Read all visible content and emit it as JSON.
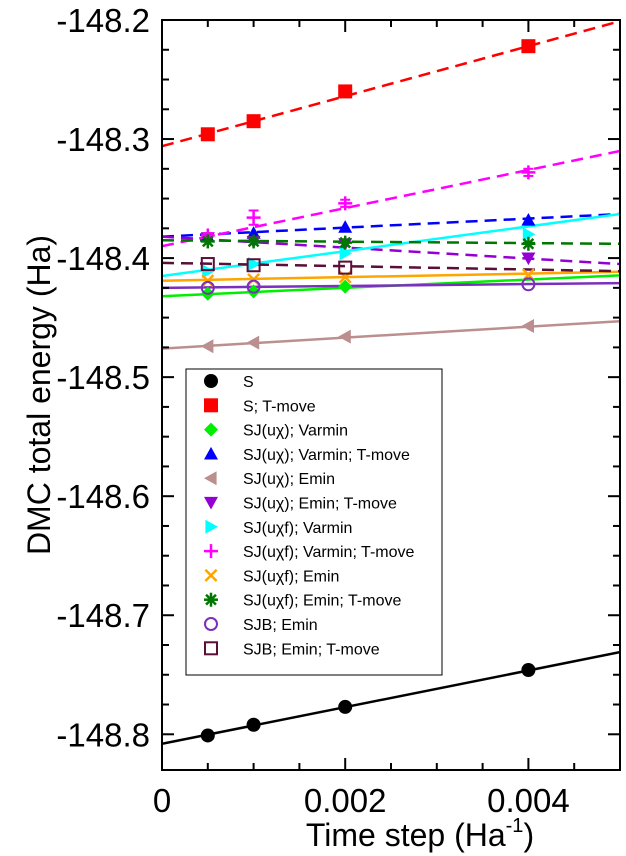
{
  "chart_data": {
    "type": "scatter",
    "xlabel": "Time step (Ha",
    "xlabel_sup": "-1",
    "xlabel_end": ")",
    "ylabel": "DMC total energy (Ha)",
    "xlim": [
      0,
      0.005
    ],
    "ylim": [
      -148.83,
      -148.2
    ],
    "x_ticks": [
      0,
      0.002,
      0.004
    ],
    "x_tick_labels": [
      "0",
      "0.002",
      "0.004"
    ],
    "y_ticks": [
      -148.2,
      -148.3,
      -148.4,
      -148.5,
      -148.6,
      -148.7,
      -148.8
    ],
    "y_tick_labels": [
      "-148.2",
      "-148.3",
      "-148.4",
      "-148.5",
      "-148.6",
      "-148.7",
      "-148.8"
    ],
    "grid": false,
    "legend_position": "lower-left",
    "series": [
      {
        "name": "S",
        "marker": "circle",
        "color": "#000000",
        "line": "solid",
        "x": [
          0.0005,
          0.001,
          0.002,
          0.004
        ],
        "y": [
          -148.801,
          -148.792,
          -148.777,
          -148.746
        ],
        "fit": {
          "intercept": -148.808,
          "slope": 15.4
        }
      },
      {
        "name": "S; T-move",
        "marker": "square",
        "color": "#ff0000",
        "line": "dashed",
        "x": [
          0.0005,
          0.001,
          0.002,
          0.004
        ],
        "y": [
          -148.296,
          -148.285,
          -148.26,
          -148.222
        ],
        "fit": {
          "intercept": -148.306,
          "slope": 21.0
        }
      },
      {
        "name": "SJ(uχ); Varmin",
        "marker": "diamond",
        "color": "#00ee00",
        "line": "solid",
        "x": [
          0.0005,
          0.001,
          0.002
        ],
        "y": [
          -148.43,
          -148.428,
          -148.424
        ],
        "fit": {
          "intercept": -148.432,
          "slope": 3.5
        }
      },
      {
        "name": "SJ(uχ); Varmin; T-move",
        "marker": "triangle-up",
        "color": "#0000ff",
        "line": "dashed",
        "x": [
          0.0005,
          0.001,
          0.002,
          0.004
        ],
        "y": [
          -148.382,
          -148.379,
          -148.374,
          -148.368
        ],
        "fit": {
          "intercept": -148.382,
          "slope": 3.8
        }
      },
      {
        "name": "SJ(uχ); Emin",
        "marker": "triangle-left",
        "color": "#bc8f8f",
        "line": "solid",
        "x": [
          0.0005,
          0.001,
          0.002,
          0.004
        ],
        "y": [
          -148.474,
          -148.471,
          -148.466,
          -148.457
        ],
        "fit": {
          "intercept": -148.476,
          "slope": 4.6
        }
      },
      {
        "name": "SJ(uχ); Emin; T-move",
        "marker": "triangle-down",
        "color": "#9400d3",
        "line": "dashed",
        "x": [
          0.0005,
          0.001,
          0.002,
          0.004
        ],
        "y": [
          -148.383,
          -148.386,
          -148.388,
          -148.4
        ],
        "fit": {
          "intercept": -148.382,
          "slope": -4.6
        }
      },
      {
        "name": "SJ(uχf); Varmin",
        "marker": "triangle-right",
        "color": "#00ffff",
        "line": "solid",
        "x": [
          0.0005,
          0.001,
          0.002,
          0.004
        ],
        "y": [
          -148.411,
          -148.405,
          -148.396,
          -148.38
        ],
        "fit": {
          "intercept": -148.415,
          "slope": 10.4
        }
      },
      {
        "name": "SJ(uχf); Varmin; T-move",
        "marker": "plus",
        "color": "#ff00ff",
        "line": "dashed",
        "x": [
          0.0005,
          0.001,
          0.002,
          0.004
        ],
        "y": [
          -148.381,
          -148.366,
          -148.354,
          -148.328
        ],
        "err": [
          0.002,
          0.006,
          0.003,
          0.003
        ],
        "fit": {
          "intercept": -148.39,
          "slope": 16.0
        }
      },
      {
        "name": "SJ(uχf); Emin",
        "marker": "x",
        "color": "#ffa500",
        "line": "solid",
        "x": [
          0.0005,
          0.001,
          0.002,
          0.004
        ],
        "y": [
          -148.419,
          -148.418,
          -148.416,
          -148.414
        ],
        "fit": {
          "intercept": -148.419,
          "slope": 1.5
        }
      },
      {
        "name": "SJ(uχf); Emin; T-move",
        "marker": "asterisk",
        "color": "#007700",
        "line": "dashed",
        "x": [
          0.0005,
          0.001,
          0.002,
          0.004
        ],
        "y": [
          -148.386,
          -148.386,
          -148.387,
          -148.388
        ],
        "fit": {
          "intercept": -148.385,
          "slope": -0.6
        }
      },
      {
        "name": "SJB; Emin",
        "marker": "circle-open",
        "color": "#7b2fbe",
        "line": "solid",
        "x": [
          0.0005,
          0.001,
          0.004
        ],
        "y": [
          -148.425,
          -148.424,
          -148.422
        ],
        "fit": {
          "intercept": -148.425,
          "slope": 0.8
        }
      },
      {
        "name": "SJB; Emin; T-move",
        "marker": "square-open",
        "color": "#5a0e38",
        "line": "dashed",
        "x": [
          0.0005,
          0.001,
          0.002
        ],
        "y": [
          -148.405,
          -148.406,
          -148.408
        ],
        "fit": {
          "intercept": -148.404,
          "slope": -1.4
        }
      }
    ]
  }
}
